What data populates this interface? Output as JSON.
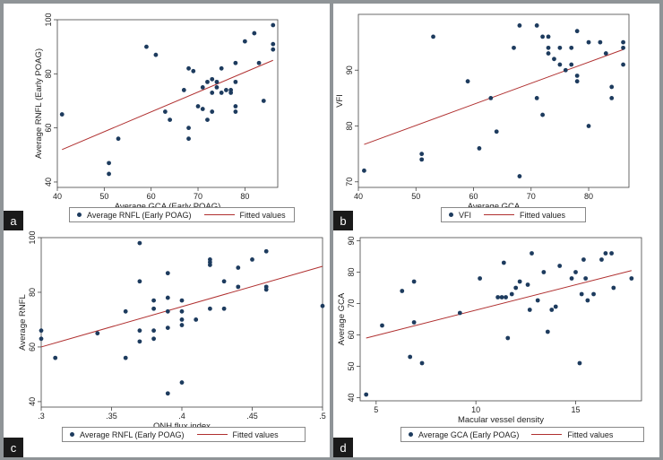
{
  "colors": {
    "point": "#1d3b5e",
    "fit_line": "#b03030",
    "frame": "#444444"
  },
  "chart_data": [
    {
      "type": "scatter",
      "tag": "a",
      "xlabel": "Average GCA (Early POAG)",
      "ylabel": "Average RNFL (Early POAG)",
      "xlim": [
        40,
        87
      ],
      "ylim": [
        38,
        100
      ],
      "xticks": [
        40,
        50,
        60,
        70,
        80
      ],
      "yticks": [
        40,
        60,
        80,
        100
      ],
      "legend": [
        "Average RNFL (Early POAG)",
        "Fitted values"
      ],
      "fit": [
        [
          41,
          52
        ],
        [
          86,
          85
        ]
      ],
      "points": [
        [
          41,
          65
        ],
        [
          51,
          47
        ],
        [
          51,
          43
        ],
        [
          53,
          56
        ],
        [
          59,
          90
        ],
        [
          61,
          87
        ],
        [
          63,
          66
        ],
        [
          64,
          63
        ],
        [
          67,
          74
        ],
        [
          68,
          82
        ],
        [
          68,
          60
        ],
        [
          68,
          56
        ],
        [
          69,
          81
        ],
        [
          70,
          68
        ],
        [
          71,
          75
        ],
        [
          71,
          67
        ],
        [
          72,
          77
        ],
        [
          72,
          63
        ],
        [
          73,
          78
        ],
        [
          73,
          73
        ],
        [
          73,
          66
        ],
        [
          74,
          75
        ],
        [
          74,
          77
        ],
        [
          75,
          82
        ],
        [
          75,
          73
        ],
        [
          76,
          74
        ],
        [
          77,
          74
        ],
        [
          77,
          73
        ],
        [
          78,
          84
        ],
        [
          78,
          77
        ],
        [
          78,
          68
        ],
        [
          78,
          66
        ],
        [
          80,
          92
        ],
        [
          82,
          95
        ],
        [
          83,
          84
        ],
        [
          84,
          70
        ],
        [
          86,
          98
        ],
        [
          86,
          91
        ],
        [
          86,
          89
        ]
      ]
    },
    {
      "type": "scatter",
      "tag": "b",
      "xlabel": "Average GCA",
      "ylabel": "VFI",
      "xlim": [
        40,
        87
      ],
      "ylim": [
        69,
        100
      ],
      "xticks": [
        40,
        50,
        60,
        70,
        80
      ],
      "yticks": [
        70,
        80,
        90
      ],
      "legend": [
        "VFI",
        "Fitted values"
      ],
      "fit": [
        [
          41,
          76.7
        ],
        [
          86,
          93.7
        ]
      ],
      "points": [
        [
          41,
          72
        ],
        [
          51,
          75
        ],
        [
          51,
          74
        ],
        [
          53,
          96
        ],
        [
          59,
          88
        ],
        [
          61,
          76
        ],
        [
          63,
          85
        ],
        [
          64,
          79
        ],
        [
          67,
          94
        ],
        [
          68,
          98
        ],
        [
          68,
          71
        ],
        [
          71,
          98
        ],
        [
          71,
          85
        ],
        [
          72,
          96
        ],
        [
          72,
          82
        ],
        [
          73,
          96
        ],
        [
          73,
          94
        ],
        [
          73,
          93
        ],
        [
          74,
          92
        ],
        [
          75,
          94
        ],
        [
          75,
          91
        ],
        [
          76,
          90
        ],
        [
          77,
          94
        ],
        [
          77,
          91
        ],
        [
          78,
          97
        ],
        [
          78,
          89
        ],
        [
          78,
          88
        ],
        [
          80,
          95
        ],
        [
          80,
          80
        ],
        [
          82,
          95
        ],
        [
          83,
          93
        ],
        [
          84,
          87
        ],
        [
          84,
          85
        ],
        [
          86,
          95
        ],
        [
          86,
          94
        ],
        [
          86,
          91
        ]
      ]
    },
    {
      "type": "scatter",
      "tag": "c",
      "xlabel": "ONH flux index",
      "ylabel": "Average RNFL",
      "xlim": [
        0.3,
        0.5
      ],
      "ylim": [
        38,
        100
      ],
      "xticks": [
        0.3,
        0.35,
        0.4,
        0.45,
        0.5
      ],
      "xtick_labels": [
        ".3",
        ".35",
        ".4",
        ".45",
        ".5"
      ],
      "yticks": [
        40,
        60,
        80,
        100
      ],
      "legend": [
        "Average RNFL (Early POAG)",
        "Fitted values"
      ],
      "fit": [
        [
          0.3,
          60
        ],
        [
          0.5,
          89.5
        ]
      ],
      "points": [
        [
          0.3,
          66
        ],
        [
          0.3,
          63
        ],
        [
          0.31,
          56
        ],
        [
          0.34,
          65
        ],
        [
          0.36,
          73
        ],
        [
          0.36,
          56
        ],
        [
          0.37,
          98
        ],
        [
          0.37,
          84
        ],
        [
          0.37,
          66
        ],
        [
          0.37,
          62
        ],
        [
          0.38,
          77
        ],
        [
          0.38,
          74
        ],
        [
          0.38,
          66
        ],
        [
          0.38,
          63
        ],
        [
          0.39,
          87
        ],
        [
          0.39,
          78
        ],
        [
          0.39,
          73
        ],
        [
          0.39,
          67
        ],
        [
          0.39,
          43
        ],
        [
          0.4,
          77
        ],
        [
          0.4,
          73
        ],
        [
          0.4,
          70
        ],
        [
          0.4,
          68
        ],
        [
          0.4,
          47
        ],
        [
          0.41,
          70
        ],
        [
          0.42,
          92
        ],
        [
          0.42,
          91
        ],
        [
          0.42,
          90
        ],
        [
          0.42,
          74
        ],
        [
          0.43,
          84
        ],
        [
          0.43,
          74
        ],
        [
          0.44,
          89
        ],
        [
          0.44,
          82
        ],
        [
          0.45,
          92
        ],
        [
          0.46,
          95
        ],
        [
          0.46,
          82
        ],
        [
          0.46,
          81
        ],
        [
          0.5,
          75
        ]
      ]
    },
    {
      "type": "scatter",
      "tag": "d",
      "xlabel": "Macular vessel density",
      "ylabel": "Average GCA",
      "xlim": [
        4.2,
        18.3
      ],
      "ylim": [
        39,
        91
      ],
      "xticks": [
        5,
        10,
        15
      ],
      "yticks": [
        40,
        50,
        60,
        70,
        80,
        90
      ],
      "legend": [
        "Average GCA (Early POAG)",
        "Fitted values"
      ],
      "fit": [
        [
          4.5,
          59
        ],
        [
          17.8,
          80.5
        ]
      ],
      "points": [
        [
          4.5,
          41
        ],
        [
          5.3,
          63
        ],
        [
          6.3,
          74
        ],
        [
          6.7,
          53
        ],
        [
          6.9,
          77
        ],
        [
          6.9,
          64
        ],
        [
          7.3,
          51
        ],
        [
          9.2,
          67
        ],
        [
          10.2,
          78
        ],
        [
          11.1,
          72
        ],
        [
          11.3,
          72
        ],
        [
          11.4,
          83
        ],
        [
          11.5,
          72
        ],
        [
          11.6,
          59
        ],
        [
          11.8,
          73
        ],
        [
          12,
          75
        ],
        [
          12.2,
          77
        ],
        [
          12.6,
          76
        ],
        [
          12.7,
          68
        ],
        [
          12.8,
          86
        ],
        [
          13.1,
          71
        ],
        [
          13.4,
          80
        ],
        [
          13.6,
          61
        ],
        [
          13.8,
          68
        ],
        [
          14,
          69
        ],
        [
          14.2,
          82
        ],
        [
          14.8,
          78
        ],
        [
          15,
          80
        ],
        [
          15.2,
          51
        ],
        [
          15.3,
          73
        ],
        [
          15.4,
          84
        ],
        [
          15.5,
          78
        ],
        [
          15.6,
          71
        ],
        [
          15.9,
          73
        ],
        [
          16.3,
          84
        ],
        [
          16.5,
          86
        ],
        [
          16.8,
          86
        ],
        [
          16.9,
          75
        ],
        [
          17.8,
          78
        ]
      ]
    }
  ]
}
